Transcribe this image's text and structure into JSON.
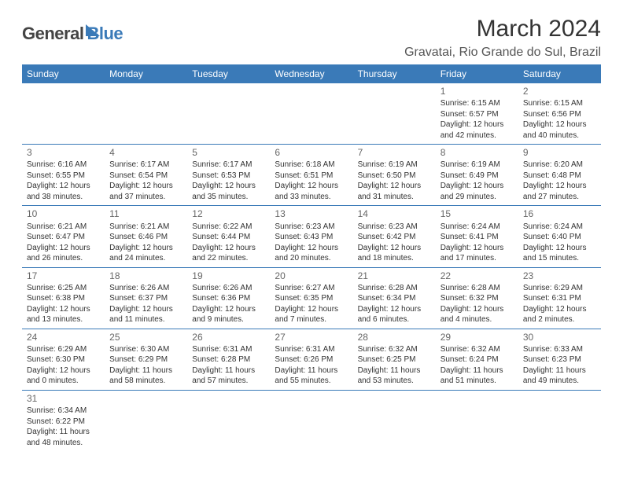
{
  "logo": {
    "part1": "General",
    "part2": "Blue"
  },
  "title": "March 2024",
  "location": "Gravatai, Rio Grande do Sul, Brazil",
  "colors": {
    "accent": "#3a7ab8",
    "text": "#333333",
    "muted": "#666666"
  },
  "weekdays": [
    "Sunday",
    "Monday",
    "Tuesday",
    "Wednesday",
    "Thursday",
    "Friday",
    "Saturday"
  ],
  "days": {
    "1": {
      "sr": "Sunrise: 6:15 AM",
      "ss": "Sunset: 6:57 PM",
      "dl1": "Daylight: 12 hours",
      "dl2": "and 42 minutes."
    },
    "2": {
      "sr": "Sunrise: 6:15 AM",
      "ss": "Sunset: 6:56 PM",
      "dl1": "Daylight: 12 hours",
      "dl2": "and 40 minutes."
    },
    "3": {
      "sr": "Sunrise: 6:16 AM",
      "ss": "Sunset: 6:55 PM",
      "dl1": "Daylight: 12 hours",
      "dl2": "and 38 minutes."
    },
    "4": {
      "sr": "Sunrise: 6:17 AM",
      "ss": "Sunset: 6:54 PM",
      "dl1": "Daylight: 12 hours",
      "dl2": "and 37 minutes."
    },
    "5": {
      "sr": "Sunrise: 6:17 AM",
      "ss": "Sunset: 6:53 PM",
      "dl1": "Daylight: 12 hours",
      "dl2": "and 35 minutes."
    },
    "6": {
      "sr": "Sunrise: 6:18 AM",
      "ss": "Sunset: 6:51 PM",
      "dl1": "Daylight: 12 hours",
      "dl2": "and 33 minutes."
    },
    "7": {
      "sr": "Sunrise: 6:19 AM",
      "ss": "Sunset: 6:50 PM",
      "dl1": "Daylight: 12 hours",
      "dl2": "and 31 minutes."
    },
    "8": {
      "sr": "Sunrise: 6:19 AM",
      "ss": "Sunset: 6:49 PM",
      "dl1": "Daylight: 12 hours",
      "dl2": "and 29 minutes."
    },
    "9": {
      "sr": "Sunrise: 6:20 AM",
      "ss": "Sunset: 6:48 PM",
      "dl1": "Daylight: 12 hours",
      "dl2": "and 27 minutes."
    },
    "10": {
      "sr": "Sunrise: 6:21 AM",
      "ss": "Sunset: 6:47 PM",
      "dl1": "Daylight: 12 hours",
      "dl2": "and 26 minutes."
    },
    "11": {
      "sr": "Sunrise: 6:21 AM",
      "ss": "Sunset: 6:46 PM",
      "dl1": "Daylight: 12 hours",
      "dl2": "and 24 minutes."
    },
    "12": {
      "sr": "Sunrise: 6:22 AM",
      "ss": "Sunset: 6:44 PM",
      "dl1": "Daylight: 12 hours",
      "dl2": "and 22 minutes."
    },
    "13": {
      "sr": "Sunrise: 6:23 AM",
      "ss": "Sunset: 6:43 PM",
      "dl1": "Daylight: 12 hours",
      "dl2": "and 20 minutes."
    },
    "14": {
      "sr": "Sunrise: 6:23 AM",
      "ss": "Sunset: 6:42 PM",
      "dl1": "Daylight: 12 hours",
      "dl2": "and 18 minutes."
    },
    "15": {
      "sr": "Sunrise: 6:24 AM",
      "ss": "Sunset: 6:41 PM",
      "dl1": "Daylight: 12 hours",
      "dl2": "and 17 minutes."
    },
    "16": {
      "sr": "Sunrise: 6:24 AM",
      "ss": "Sunset: 6:40 PM",
      "dl1": "Daylight: 12 hours",
      "dl2": "and 15 minutes."
    },
    "17": {
      "sr": "Sunrise: 6:25 AM",
      "ss": "Sunset: 6:38 PM",
      "dl1": "Daylight: 12 hours",
      "dl2": "and 13 minutes."
    },
    "18": {
      "sr": "Sunrise: 6:26 AM",
      "ss": "Sunset: 6:37 PM",
      "dl1": "Daylight: 12 hours",
      "dl2": "and 11 minutes."
    },
    "19": {
      "sr": "Sunrise: 6:26 AM",
      "ss": "Sunset: 6:36 PM",
      "dl1": "Daylight: 12 hours",
      "dl2": "and 9 minutes."
    },
    "20": {
      "sr": "Sunrise: 6:27 AM",
      "ss": "Sunset: 6:35 PM",
      "dl1": "Daylight: 12 hours",
      "dl2": "and 7 minutes."
    },
    "21": {
      "sr": "Sunrise: 6:28 AM",
      "ss": "Sunset: 6:34 PM",
      "dl1": "Daylight: 12 hours",
      "dl2": "and 6 minutes."
    },
    "22": {
      "sr": "Sunrise: 6:28 AM",
      "ss": "Sunset: 6:32 PM",
      "dl1": "Daylight: 12 hours",
      "dl2": "and 4 minutes."
    },
    "23": {
      "sr": "Sunrise: 6:29 AM",
      "ss": "Sunset: 6:31 PM",
      "dl1": "Daylight: 12 hours",
      "dl2": "and 2 minutes."
    },
    "24": {
      "sr": "Sunrise: 6:29 AM",
      "ss": "Sunset: 6:30 PM",
      "dl1": "Daylight: 12 hours",
      "dl2": "and 0 minutes."
    },
    "25": {
      "sr": "Sunrise: 6:30 AM",
      "ss": "Sunset: 6:29 PM",
      "dl1": "Daylight: 11 hours",
      "dl2": "and 58 minutes."
    },
    "26": {
      "sr": "Sunrise: 6:31 AM",
      "ss": "Sunset: 6:28 PM",
      "dl1": "Daylight: 11 hours",
      "dl2": "and 57 minutes."
    },
    "27": {
      "sr": "Sunrise: 6:31 AM",
      "ss": "Sunset: 6:26 PM",
      "dl1": "Daylight: 11 hours",
      "dl2": "and 55 minutes."
    },
    "28": {
      "sr": "Sunrise: 6:32 AM",
      "ss": "Sunset: 6:25 PM",
      "dl1": "Daylight: 11 hours",
      "dl2": "and 53 minutes."
    },
    "29": {
      "sr": "Sunrise: 6:32 AM",
      "ss": "Sunset: 6:24 PM",
      "dl1": "Daylight: 11 hours",
      "dl2": "and 51 minutes."
    },
    "30": {
      "sr": "Sunrise: 6:33 AM",
      "ss": "Sunset: 6:23 PM",
      "dl1": "Daylight: 11 hours",
      "dl2": "and 49 minutes."
    },
    "31": {
      "sr": "Sunrise: 6:34 AM",
      "ss": "Sunset: 6:22 PM",
      "dl1": "Daylight: 11 hours",
      "dl2": "and 48 minutes."
    }
  },
  "grid": [
    [
      null,
      null,
      null,
      null,
      null,
      "1",
      "2"
    ],
    [
      "3",
      "4",
      "5",
      "6",
      "7",
      "8",
      "9"
    ],
    [
      "10",
      "11",
      "12",
      "13",
      "14",
      "15",
      "16"
    ],
    [
      "17",
      "18",
      "19",
      "20",
      "21",
      "22",
      "23"
    ],
    [
      "24",
      "25",
      "26",
      "27",
      "28",
      "29",
      "30"
    ],
    [
      "31",
      null,
      null,
      null,
      null,
      null,
      null
    ]
  ]
}
